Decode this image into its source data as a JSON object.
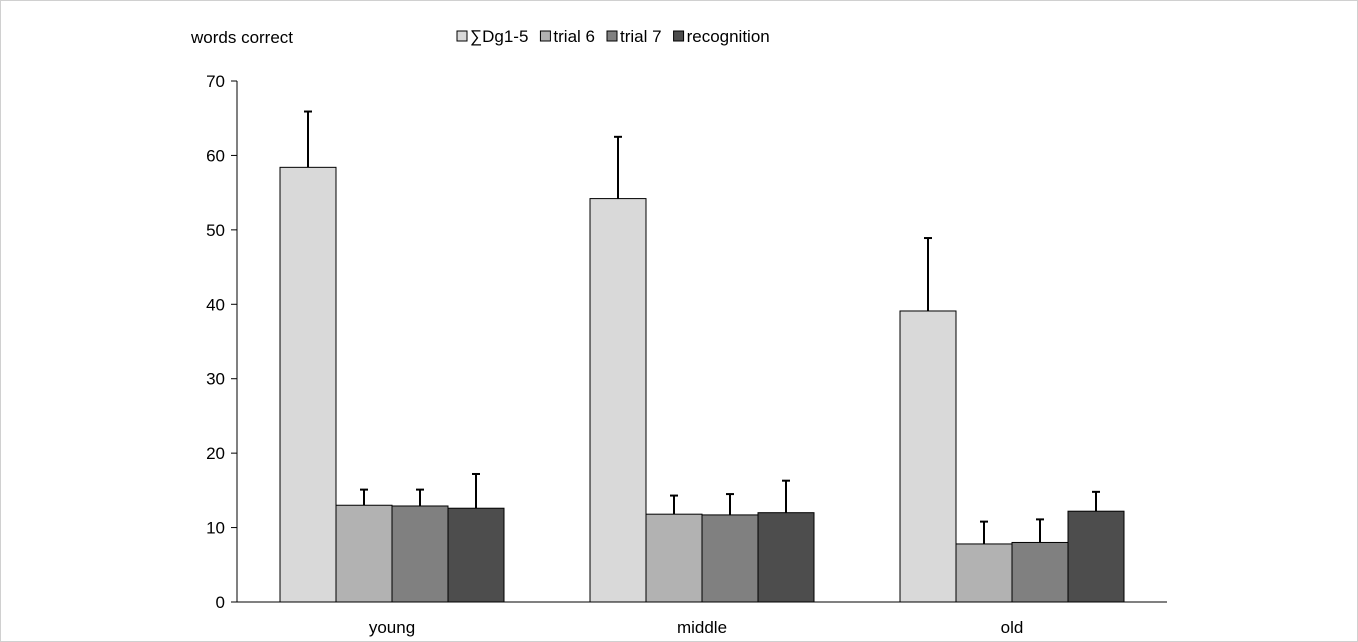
{
  "chart_data": {
    "type": "bar",
    "ylabel": "words correct",
    "xlabel": "",
    "ylim": [
      0,
      70
    ],
    "yticks": [
      0,
      10,
      20,
      30,
      40,
      50,
      60,
      70
    ],
    "categories": [
      "young",
      "middle",
      "old"
    ],
    "grid": false,
    "legend_position": "top",
    "series": [
      {
        "name": "∑Dg1-5",
        "color": "#d9d9d9",
        "values": [
          58.4,
          54.2,
          39.1
        ],
        "errors": [
          7.5,
          8.3,
          9.8
        ]
      },
      {
        "name": "trial 6",
        "color": "#b2b2b2",
        "values": [
          13.0,
          11.8,
          7.8
        ],
        "errors": [
          2.1,
          2.5,
          3.0
        ]
      },
      {
        "name": "trial 7",
        "color": "#808080",
        "values": [
          12.9,
          11.7,
          8.0
        ],
        "errors": [
          2.2,
          2.8,
          3.1
        ]
      },
      {
        "name": "recognition",
        "color": "#4d4d4d",
        "values": [
          12.6,
          12.0,
          12.2
        ],
        "errors": [
          4.6,
          4.3,
          2.6
        ]
      }
    ]
  }
}
